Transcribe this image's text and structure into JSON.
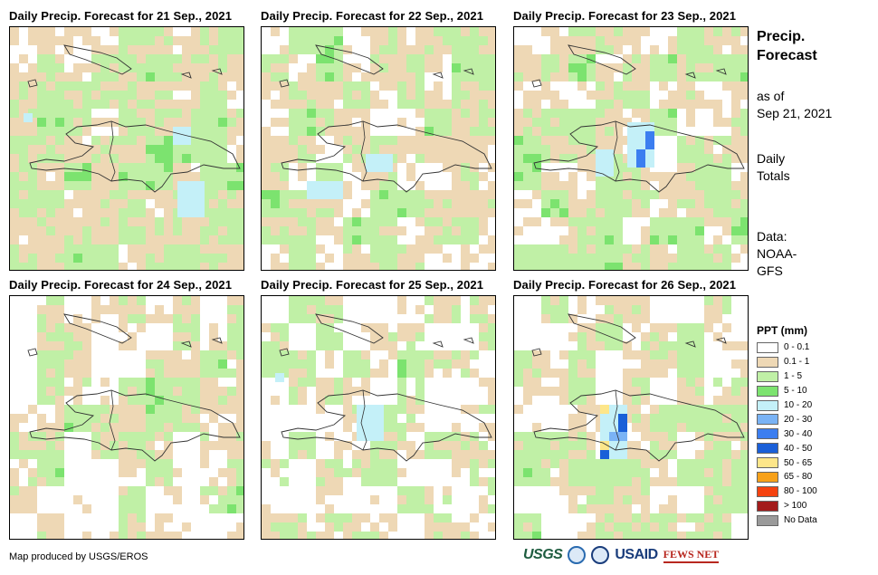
{
  "panels": [
    {
      "title": "Daily Precip. Forecast for 21 Sep., 2021"
    },
    {
      "title": "Daily Precip. Forecast for 22 Sep., 2021"
    },
    {
      "title": "Daily Precip. Forecast for 23 Sep., 2021"
    },
    {
      "title": "Daily Precip. Forecast for 24 Sep., 2021"
    },
    {
      "title": "Daily Precip. Forecast for 25 Sep., 2021"
    },
    {
      "title": "Daily Precip. Forecast for 26 Sep., 2021"
    }
  ],
  "side": {
    "title_line1": "Precip.",
    "title_line2": "Forecast",
    "asof_line1": "as of",
    "asof_line2": "Sep 21, 2021",
    "totals_line1": "Daily",
    "totals_line2": "Totals",
    "data_line1": "Data:",
    "data_line2": "NOAA-",
    "data_line3": "GFS"
  },
  "legend": {
    "title": "PPT (mm)",
    "items": [
      {
        "label": "0 - 0.1",
        "color": "#ffffff"
      },
      {
        "label": "0.1 - 1",
        "color": "#eed8b5"
      },
      {
        "label": "1 - 5",
        "color": "#c0f0a6"
      },
      {
        "label": "5 - 10",
        "color": "#7ce36f"
      },
      {
        "label": "10 - 20",
        "color": "#c4f0f8"
      },
      {
        "label": "20 - 30",
        "color": "#7ab3f5"
      },
      {
        "label": "30 - 40",
        "color": "#3c7ef0"
      },
      {
        "label": "40 - 50",
        "color": "#1a5fd8"
      },
      {
        "label": "50 - 65",
        "color": "#fde68a"
      },
      {
        "label": "65 - 80",
        "color": "#f7a11a"
      },
      {
        "label": "80 - 100",
        "color": "#f5420f"
      },
      {
        "label": "> 100",
        "color": "#a31c1c"
      },
      {
        "label": "No Data",
        "color": "#9a9a9a"
      }
    ]
  },
  "footer": {
    "credit": "Map produced by USGS/EROS"
  },
  "logos": {
    "usgs": "USGS",
    "usaid": "USAID",
    "fews": "FEWS NET"
  }
}
